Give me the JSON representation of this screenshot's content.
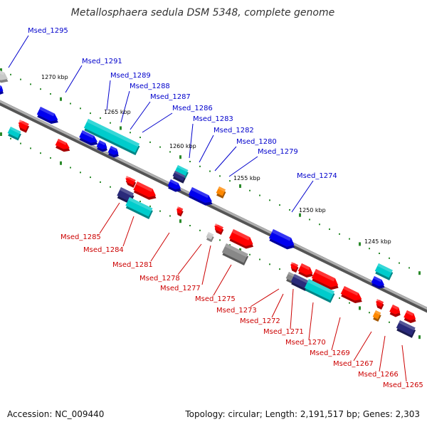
{
  "title": "Metallosphaera sedula DSM 5348, complete genome",
  "footer": {
    "accession": "Accession: NC_009440",
    "summary": "Topology: circular; Length: 2,191,517 bp; Genes: 2,303"
  },
  "colors": {
    "label_top": "#0000cc",
    "label_bottom": "#cc0000",
    "backbone": "#9a9a9a",
    "tick_green": "#008800",
    "gene_red": "#ff0000",
    "gene_blue": "#0000ee",
    "gene_cyan": "#00cccc",
    "gene_navy": "#2a2a7a",
    "gene_orange": "#ff8800",
    "gene_gray": "#888888",
    "gene_lightgray": "#c8c8c8"
  },
  "ticks": [
    {
      "label": "1270 kbp"
    },
    {
      "label": "1265 kbp"
    },
    {
      "label": "1260 kbp"
    },
    {
      "label": "1255 kbp"
    },
    {
      "label": "1250 kbp"
    },
    {
      "label": "1245 kbp"
    }
  ],
  "top_labels": [
    "Msed_1295",
    "Msed_1291",
    "Msed_1289",
    "Msed_1288",
    "Msed_1287",
    "Msed_1286",
    "Msed_1283",
    "Msed_1282",
    "Msed_1280",
    "Msed_1279",
    "Msed_1274"
  ],
  "bottom_labels": [
    "Msed_1285",
    "Msed_1284",
    "Msed_1281",
    "Msed_1278",
    "Msed_1277",
    "Msed_1275",
    "Msed_1273",
    "Msed_1272",
    "Msed_1271",
    "Msed_1270",
    "Msed_1269",
    "Msed_1267",
    "Msed_1266",
    "Msed_1265"
  ]
}
